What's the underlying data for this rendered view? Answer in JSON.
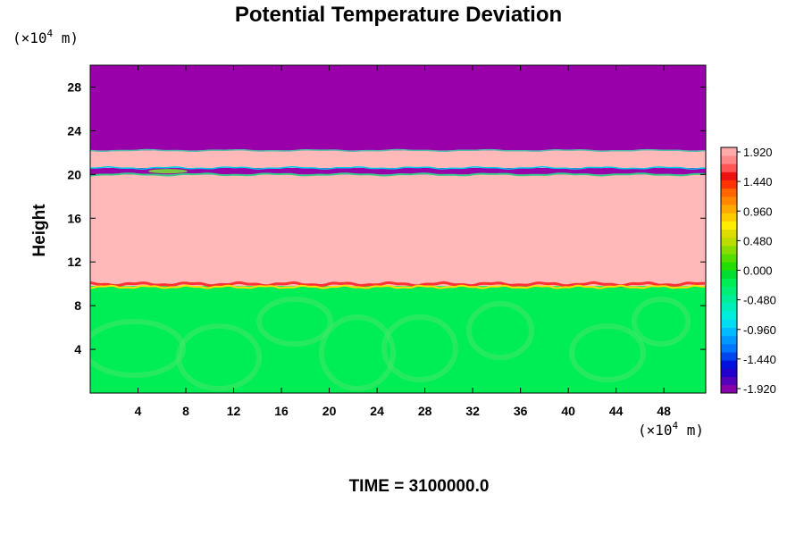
{
  "chart_data": {
    "type": "heatmap",
    "title": "Potential Temperature Deviation",
    "ylabel": "Height",
    "xunit_prefix": "(×10",
    "xunit_exp": "4",
    "xunit_suffix": " m)",
    "yunit_prefix": "(×10",
    "yunit_exp": "4",
    "yunit_suffix": " m)",
    "xlim": [
      0,
      51.5
    ],
    "ylim": [
      0,
      30
    ],
    "xticks": [
      4,
      8,
      12,
      16,
      20,
      24,
      28,
      32,
      36,
      40,
      44,
      48
    ],
    "xtick_labels": [
      "4",
      "8",
      "12",
      "16",
      "20",
      "24",
      "28",
      "32",
      "36",
      "40",
      "44",
      "48"
    ],
    "yticks": [
      4,
      8,
      12,
      16,
      20,
      24,
      28
    ],
    "ytick_labels": [
      "4",
      "8",
      "12",
      "16",
      "20",
      "24",
      "28"
    ],
    "layers": [
      {
        "from": 0,
        "to": 9.8,
        "value": 0.0,
        "color": "#00ee55"
      },
      {
        "from": 9.8,
        "to": 20.0,
        "value": 1.92,
        "color": "#ffb9b9"
      },
      {
        "from": 20.0,
        "to": 20.6,
        "value": -1.92,
        "color": "#9900aa"
      },
      {
        "from": 20.6,
        "to": 22.2,
        "value": 1.92,
        "color": "#ffb9b9"
      },
      {
        "from": 22.2,
        "to": 30,
        "value": -1.92,
        "color": "#9900aa"
      }
    ],
    "colorbar": {
      "min": -1.92,
      "max": 1.92,
      "labels": [
        "1.920",
        "1.440",
        "0.960",
        "0.480",
        "0.000",
        "-0.480",
        "-0.960",
        "-1.440",
        "-1.920"
      ],
      "colors": [
        "#8800aa",
        "#5500bb",
        "#2200cc",
        "#0011dd",
        "#0044ee",
        "#0077ff",
        "#0099ff",
        "#00bbff",
        "#00ddee",
        "#00eedd",
        "#00eebb",
        "#00ee99",
        "#00ee77",
        "#00ee55",
        "#00dd33",
        "#22dd00",
        "#55dd00",
        "#88dd00",
        "#bbdd00",
        "#dddd00",
        "#ffee00",
        "#ffcc00",
        "#ffaa00",
        "#ff8800",
        "#ff6600",
        "#ff3300",
        "#ee1111",
        "#ff5555",
        "#ff8888",
        "#ffaaaa"
      ]
    }
  },
  "footer": {
    "time_label": "TIME = 3100000.0"
  }
}
